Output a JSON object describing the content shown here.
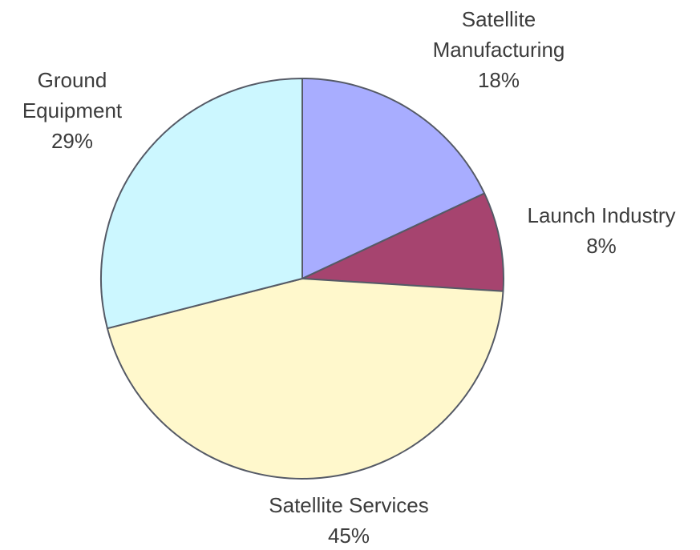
{
  "chart_data": {
    "type": "pie",
    "title": "",
    "start_angle": "12 o'clock",
    "direction": "clockwise",
    "slices": [
      {
        "label": [
          "Satellite",
          "Manufacturing"
        ],
        "value": 18,
        "value_label": "18%",
        "color": "#a8adff"
      },
      {
        "label": [
          "Launch Industry"
        ],
        "value": 8,
        "value_label": "8%",
        "color": "#a6446f"
      },
      {
        "label": [
          "Satellite Services"
        ],
        "value": 45,
        "value_label": "45%",
        "color": "#fff8cc"
      },
      {
        "label": [
          "Ground",
          "Equipment"
        ],
        "value": 29,
        "value_label": "29%",
        "color": "#ccf7ff"
      }
    ]
  }
}
